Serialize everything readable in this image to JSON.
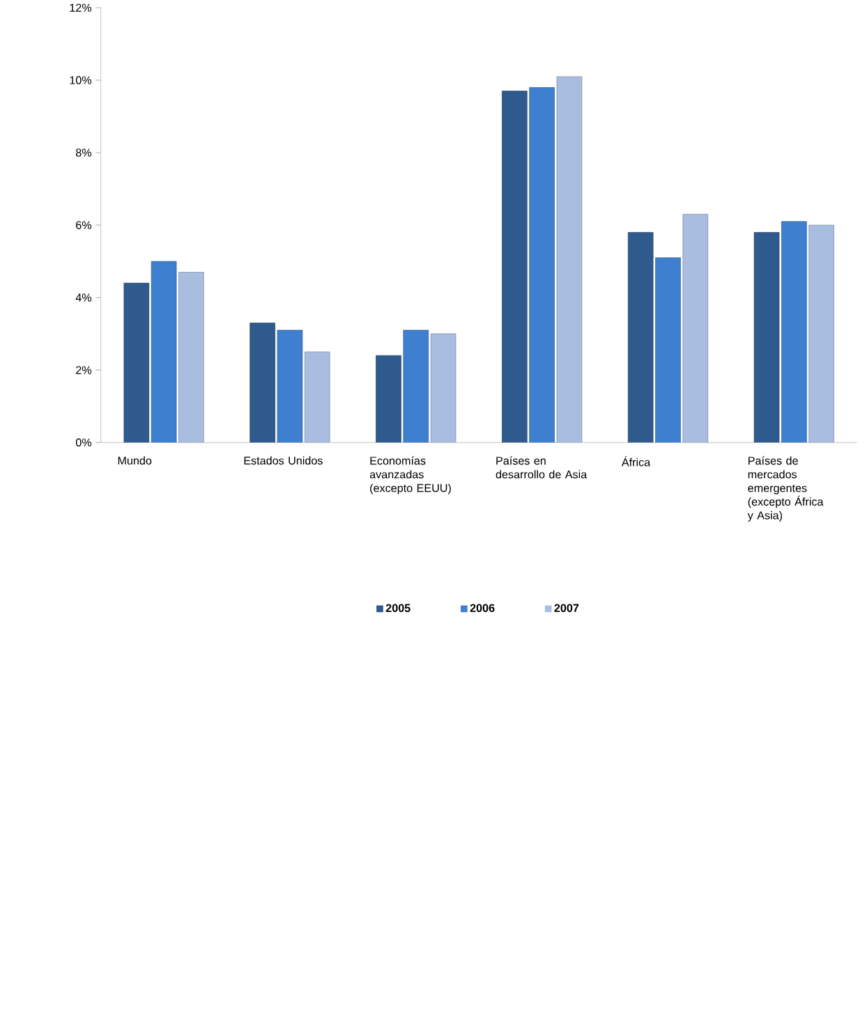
{
  "chart_data": {
    "type": "bar",
    "categories": [
      "Mundo",
      "Estados Unidos",
      "Economías avanzadas (excepto EEUU)",
      "Países en desarrollo de Asia",
      "África",
      "Países de mercados emergentes (excepto África y Asia)"
    ],
    "series": [
      {
        "name": "2005",
        "color": "#2e5a8e",
        "values": [
          4.4,
          3.3,
          2.4,
          9.7,
          5.8,
          5.8
        ]
      },
      {
        "name": "2006",
        "color": "#3f7fcf",
        "values": [
          5.0,
          3.1,
          3.1,
          9.8,
          5.1,
          6.1
        ]
      },
      {
        "name": "2007",
        "color": "#a9bde0",
        "values": [
          4.7,
          2.5,
          3.0,
          10.1,
          6.3,
          6.0
        ]
      }
    ],
    "ylim": [
      0,
      12
    ],
    "yticks": [
      {
        "value": 0,
        "label": "0%"
      },
      {
        "value": 2,
        "label": "2%"
      },
      {
        "value": 4,
        "label": "4%"
      },
      {
        "value": 6,
        "label": "6%"
      },
      {
        "value": 8,
        "label": "8%"
      },
      {
        "value": 10,
        "label": "10%"
      },
      {
        "value": 12,
        "label": "12%"
      }
    ],
    "grid": false,
    "legend": "bottom"
  }
}
